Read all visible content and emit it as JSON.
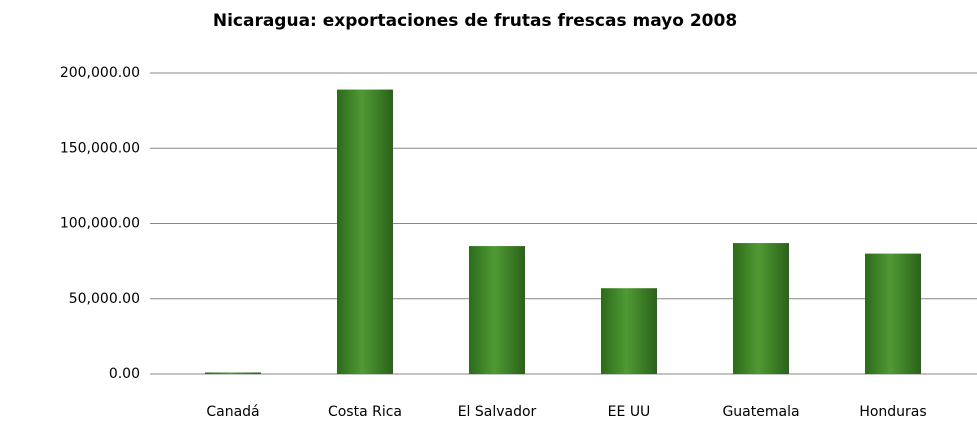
{
  "chart_data": {
    "type": "bar",
    "title": "Nicaragua: exportaciones de frutas frescas mayo 2008",
    "categories": [
      "Canadá",
      "Costa Rica",
      "El Salvador",
      "EE UU",
      "Guatemala",
      "Honduras"
    ],
    "values": [
      1000,
      189000,
      85000,
      57000,
      87000,
      80000
    ],
    "color": "#4f9a33",
    "ylim": [
      0,
      200000
    ],
    "yticks": [
      {
        "value": 0,
        "label": "0.00"
      },
      {
        "value": 50000,
        "label": "50,000.00"
      },
      {
        "value": 100000,
        "label": "100,000.00"
      },
      {
        "value": 150000,
        "label": "150,000.00"
      },
      {
        "value": 200000,
        "label": "200,000.00"
      }
    ],
    "grid": true
  }
}
